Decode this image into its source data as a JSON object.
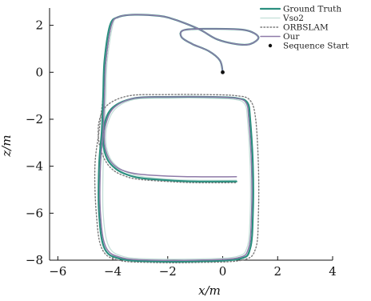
{
  "chart_data": {
    "type": "line",
    "xlabel": "x/m",
    "ylabel": "z/m",
    "xlim": [
      -6.3,
      4.0
    ],
    "ylim": [
      -8.0,
      2.6
    ],
    "xticks": [
      -6,
      -4,
      -2,
      0,
      2,
      4
    ],
    "yticks": [
      2,
      0,
      -2,
      -4,
      -6,
      -8
    ],
    "tick_labels_x": [
      "−6",
      "−4",
      "−2",
      "0",
      "2",
      "4"
    ],
    "tick_labels_y": [
      "2",
      "0",
      "−2",
      "−4",
      "−6",
      "−8"
    ],
    "legend_position": "top-right",
    "series": [
      {
        "name": "Ground Truth",
        "color": "#2a8f7f",
        "style": "solid",
        "x": [
          0.0,
          -0.1,
          -0.5,
          -1.1,
          -1.5,
          -1.4,
          -0.4,
          0.8,
          1.3,
          1.0,
          0.5,
          -0.2,
          -0.8,
          -1.4,
          -1.9,
          -2.3,
          -3.2,
          -3.8,
          -4.1,
          -4.3,
          -4.35,
          -4.4,
          -4.5,
          -4.5,
          -4.3,
          -3.7,
          -2.5,
          -1.0,
          0.6,
          1.0,
          1.1,
          1.1,
          1.0,
          0.9,
          0.5,
          -0.5,
          -2.0,
          -3.2,
          -4.0,
          -4.3,
          -4.35,
          -4.2,
          -3.9,
          -3.5,
          -3.0,
          -2.0,
          -1.0,
          0.5
        ],
        "y": [
          0.0,
          0.5,
          0.9,
          1.2,
          1.5,
          1.8,
          1.85,
          1.8,
          1.5,
          1.2,
          1.2,
          1.4,
          1.8,
          2.1,
          2.3,
          2.4,
          2.45,
          2.35,
          2.0,
          0.5,
          -1.0,
          -2.5,
          -4.0,
          -6.0,
          -7.5,
          -7.95,
          -8.05,
          -8.05,
          -7.95,
          -7.5,
          -6.0,
          -4.0,
          -2.0,
          -1.3,
          -1.1,
          -1.05,
          -1.05,
          -1.1,
          -1.5,
          -2.2,
          -3.0,
          -3.7,
          -4.1,
          -4.35,
          -4.5,
          -4.6,
          -4.65,
          -4.65
        ]
      },
      {
        "name": "Vso2",
        "color": "#c3dfd8",
        "style": "solid",
        "x": [
          0.0,
          -0.1,
          -0.5,
          -1.1,
          -1.5,
          -1.4,
          -0.4,
          0.8,
          1.3,
          1.0,
          0.5,
          -0.2,
          -0.8,
          -1.4,
          -1.9,
          -2.3,
          -3.2,
          -3.8,
          -4.0,
          -4.2,
          -4.25,
          -4.3,
          -4.35,
          -4.35,
          -4.15,
          -3.6,
          -2.5,
          -1.0,
          0.5,
          0.9,
          1.0,
          1.0,
          0.9,
          0.8,
          0.4,
          -0.6,
          -2.0,
          -3.2,
          -3.9,
          -4.2,
          -4.25,
          -4.1,
          -3.8,
          -3.4,
          -2.9,
          -2.0,
          -1.0,
          0.5
        ],
        "y": [
          0.0,
          0.5,
          0.9,
          1.2,
          1.5,
          1.8,
          1.85,
          1.8,
          1.5,
          1.2,
          1.2,
          1.4,
          1.8,
          2.1,
          2.3,
          2.4,
          2.45,
          2.35,
          2.0,
          0.5,
          -1.0,
          -2.5,
          -4.0,
          -6.0,
          -7.4,
          -7.85,
          -7.95,
          -7.95,
          -7.85,
          -7.4,
          -6.0,
          -4.0,
          -2.0,
          -1.35,
          -1.15,
          -1.1,
          -1.1,
          -1.15,
          -1.55,
          -2.25,
          -3.0,
          -3.65,
          -4.05,
          -4.3,
          -4.45,
          -4.55,
          -4.6,
          -4.6
        ]
      },
      {
        "name": "ORBSLAM",
        "color": "#7a7a7a",
        "style": "dotted",
        "x": [
          0.0,
          -0.1,
          -0.5,
          -1.1,
          -1.5,
          -1.4,
          -0.4,
          0.8,
          1.3,
          1.0,
          0.5,
          -0.2,
          -0.8,
          -1.4,
          -1.9,
          -2.3,
          -3.2,
          -3.8,
          -4.05,
          -4.25,
          -4.35,
          -4.5,
          -4.65,
          -4.6,
          -4.4,
          -3.8,
          -2.5,
          -1.0,
          0.7,
          1.2,
          1.3,
          1.3,
          1.2,
          1.0,
          0.5,
          -0.6,
          -2.1,
          -3.4,
          -4.2,
          -4.5,
          -4.5,
          -4.3,
          -4.0,
          -3.6,
          -3.1,
          -2.0,
          -1.0,
          0.5
        ],
        "y": [
          0.0,
          0.5,
          0.9,
          1.2,
          1.5,
          1.8,
          1.85,
          1.8,
          1.5,
          1.2,
          1.2,
          1.4,
          1.8,
          2.1,
          2.3,
          2.4,
          2.45,
          2.35,
          2.0,
          0.5,
          -1.0,
          -2.5,
          -4.0,
          -6.0,
          -7.5,
          -8.0,
          -8.1,
          -8.1,
          -8.0,
          -7.5,
          -6.0,
          -4.0,
          -2.0,
          -1.2,
          -1.0,
          -0.95,
          -0.95,
          -1.0,
          -1.4,
          -2.1,
          -3.0,
          -3.7,
          -4.15,
          -4.4,
          -4.55,
          -4.65,
          -4.7,
          -4.7
        ]
      },
      {
        "name": "Our",
        "color": "#8e7aa8",
        "style": "solid",
        "x": [
          0.0,
          -0.1,
          -0.5,
          -1.1,
          -1.5,
          -1.4,
          -0.4,
          0.8,
          1.3,
          1.0,
          0.5,
          -0.2,
          -0.8,
          -1.4,
          -1.9,
          -2.3,
          -3.2,
          -3.8,
          -4.05,
          -4.25,
          -4.3,
          -4.35,
          -4.45,
          -4.45,
          -4.25,
          -3.65,
          -2.5,
          -1.0,
          0.55,
          0.95,
          1.05,
          1.05,
          0.95,
          0.85,
          0.45,
          -0.55,
          -2.0,
          -3.2,
          -3.95,
          -4.25,
          -4.3,
          -4.15,
          -3.85,
          -3.45,
          -2.95,
          -2.0,
          -1.0,
          0.5
        ],
        "y": [
          0.0,
          0.5,
          0.9,
          1.2,
          1.5,
          1.8,
          1.85,
          1.8,
          1.5,
          1.2,
          1.2,
          1.4,
          1.8,
          2.1,
          2.3,
          2.4,
          2.45,
          2.35,
          2.0,
          0.5,
          -1.0,
          -2.5,
          -4.0,
          -6.0,
          -7.45,
          -7.9,
          -8.0,
          -8.0,
          -7.9,
          -7.45,
          -6.0,
          -4.0,
          -2.0,
          -1.3,
          -1.1,
          -1.05,
          -1.05,
          -1.1,
          -1.5,
          -2.2,
          -3.0,
          -3.65,
          -4.05,
          -4.25,
          -4.35,
          -4.42,
          -4.45,
          -4.45
        ]
      }
    ],
    "markers": [
      {
        "name": "Sequence Start",
        "x": 0.0,
        "y": 0.0,
        "color": "#111111"
      }
    ]
  }
}
